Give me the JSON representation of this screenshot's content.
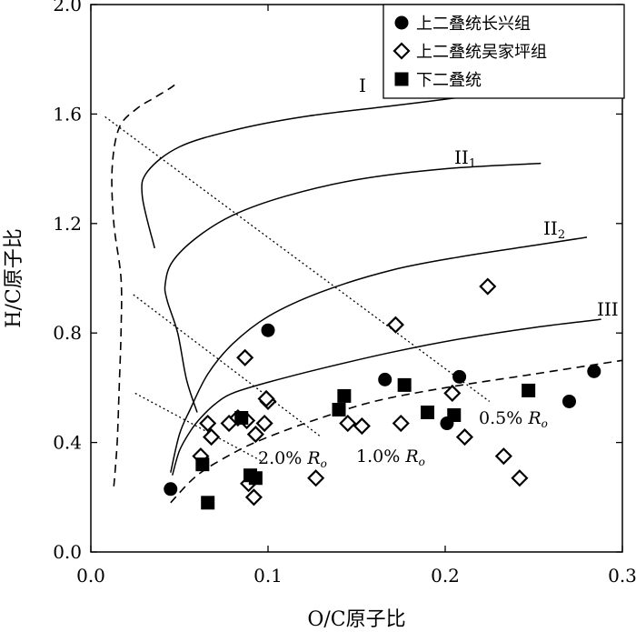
{
  "chart_data": {
    "type": "scatter",
    "xlabel": "O/C原子比",
    "ylabel": "H/C原子比",
    "xlim": [
      0.0,
      0.3
    ],
    "ylim": [
      0.0,
      2.0
    ],
    "xticks": [
      "0.0",
      "0.1",
      "0.2",
      "0.3"
    ],
    "yticks": [
      "0.0",
      "0.4",
      "0.8",
      "1.2",
      "1.6",
      "2.0"
    ],
    "legend_position": "top-right",
    "series": [
      {
        "name": "上二叠统长兴组",
        "marker": "filled-circle",
        "points": [
          [
            0.045,
            0.23
          ],
          [
            0.1,
            0.81
          ],
          [
            0.166,
            0.63
          ],
          [
            0.208,
            0.64
          ],
          [
            0.201,
            0.47
          ],
          [
            0.27,
            0.55
          ],
          [
            0.284,
            0.66
          ]
        ]
      },
      {
        "name": "上二叠统吴家坪组",
        "marker": "open-diamond",
        "points": [
          [
            0.062,
            0.35
          ],
          [
            0.066,
            0.47
          ],
          [
            0.068,
            0.42
          ],
          [
            0.078,
            0.47
          ],
          [
            0.083,
            0.49
          ],
          [
            0.087,
            0.71
          ],
          [
            0.088,
            0.48
          ],
          [
            0.089,
            0.25
          ],
          [
            0.092,
            0.2
          ],
          [
            0.093,
            0.43
          ],
          [
            0.098,
            0.47
          ],
          [
            0.1,
            0.55
          ],
          [
            0.099,
            0.56
          ],
          [
            0.127,
            0.27
          ],
          [
            0.145,
            0.47
          ],
          [
            0.153,
            0.46
          ],
          [
            0.172,
            0.83
          ],
          [
            0.175,
            0.47
          ],
          [
            0.204,
            0.58
          ],
          [
            0.211,
            0.42
          ],
          [
            0.224,
            0.97
          ],
          [
            0.233,
            0.35
          ],
          [
            0.242,
            0.27
          ]
        ]
      },
      {
        "name": "下二叠统",
        "marker": "filled-square",
        "points": [
          [
            0.063,
            0.32
          ],
          [
            0.066,
            0.18
          ],
          [
            0.085,
            0.49
          ],
          [
            0.09,
            0.28
          ],
          [
            0.093,
            0.27
          ],
          [
            0.14,
            0.52
          ],
          [
            0.143,
            0.57
          ],
          [
            0.177,
            0.61
          ],
          [
            0.19,
            0.51
          ],
          [
            0.205,
            0.5
          ],
          [
            0.247,
            0.59
          ]
        ]
      }
    ],
    "curves": [
      {
        "label": "I",
        "sub": "",
        "points": [
          [
            0.036,
            1.11
          ],
          [
            0.029,
            1.3
          ],
          [
            0.032,
            1.39
          ],
          [
            0.05,
            1.48
          ],
          [
            0.08,
            1.54
          ],
          [
            0.12,
            1.59
          ],
          [
            0.17,
            1.63
          ],
          [
            0.22,
            1.67
          ],
          [
            0.25,
            1.7
          ]
        ]
      },
      {
        "label": "II",
        "sub": "1",
        "points": [
          [
            0.06,
            0.51
          ],
          [
            0.054,
            0.63
          ],
          [
            0.049,
            0.8
          ],
          [
            0.043,
            0.92
          ],
          [
            0.042,
            0.98
          ],
          [
            0.046,
            1.06
          ],
          [
            0.06,
            1.15
          ],
          [
            0.08,
            1.23
          ],
          [
            0.11,
            1.3
          ],
          [
            0.15,
            1.36
          ],
          [
            0.2,
            1.4
          ],
          [
            0.254,
            1.42
          ]
        ]
      },
      {
        "label": "II",
        "sub": "2",
        "points": [
          [
            0.045,
            0.29
          ],
          [
            0.05,
            0.43
          ],
          [
            0.056,
            0.52
          ],
          [
            0.066,
            0.65
          ],
          [
            0.08,
            0.76
          ],
          [
            0.1,
            0.86
          ],
          [
            0.13,
            0.95
          ],
          [
            0.17,
            1.03
          ],
          [
            0.21,
            1.08
          ],
          [
            0.25,
            1.12
          ],
          [
            0.28,
            1.15
          ]
        ]
      },
      {
        "label": "III",
        "sub": "",
        "points": [
          [
            0.046,
            0.28
          ],
          [
            0.05,
            0.37
          ],
          [
            0.056,
            0.44
          ],
          [
            0.062,
            0.49
          ],
          [
            0.07,
            0.54
          ],
          [
            0.08,
            0.58
          ],
          [
            0.1,
            0.62
          ],
          [
            0.13,
            0.67
          ],
          [
            0.17,
            0.73
          ],
          [
            0.21,
            0.78
          ],
          [
            0.25,
            0.82
          ],
          [
            0.288,
            0.85
          ]
        ]
      }
    ],
    "boundary": [
      [
        0.013,
        0.24
      ],
      [
        0.014,
        0.32
      ],
      [
        0.015,
        0.42
      ],
      [
        0.016,
        0.6
      ],
      [
        0.017,
        0.8
      ],
      [
        0.017,
        1.0
      ],
      [
        0.013,
        1.2
      ],
      [
        0.012,
        1.4
      ],
      [
        0.016,
        1.55
      ],
      [
        0.026,
        1.62
      ],
      [
        0.036,
        1.66
      ],
      [
        0.046,
        1.7
      ],
      [
        0.049,
        1.72
      ]
    ],
    "trend": [
      [
        0.045,
        0.18
      ],
      [
        0.06,
        0.28
      ],
      [
        0.08,
        0.36
      ],
      [
        0.1,
        0.42
      ],
      [
        0.13,
        0.49
      ],
      [
        0.16,
        0.55
      ],
      [
        0.2,
        0.6
      ],
      [
        0.25,
        0.65
      ],
      [
        0.3,
        0.7
      ]
    ],
    "iso_lines": [
      {
        "label": "0.5%",
        "ro": "R",
        "ro_sub": "o",
        "points": [
          [
            0.008,
            1.59
          ],
          [
            0.225,
            0.55
          ]
        ]
      },
      {
        "label": "1.0%",
        "ro": "R",
        "ro_sub": "o",
        "points": [
          [
            0.024,
            0.94
          ],
          [
            0.13,
            0.42
          ]
        ]
      },
      {
        "label": "2.0%",
        "ro": "R",
        "ro_sub": "o",
        "points": [
          [
            0.025,
            0.58
          ],
          [
            0.097,
            0.33
          ]
        ]
      }
    ]
  }
}
